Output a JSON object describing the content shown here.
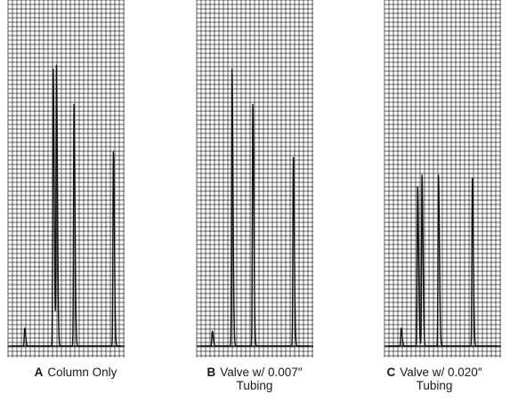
{
  "colors": {
    "grid": "#2b2b2b",
    "trace": "#111111",
    "background": "#ffffff"
  },
  "panels": [
    {
      "letter": "A",
      "caption": "Column Only",
      "caption2": ""
    },
    {
      "letter": "B",
      "caption": "Valve w/ 0.007″",
      "caption2": "Tubing"
    },
    {
      "letter": "C",
      "caption": "Valve w/ 0.020″",
      "caption2": "Tubing"
    }
  ],
  "chart_data": [
    {
      "type": "line",
      "title": "",
      "caption": "A Column Only",
      "xlabel": "",
      "ylabel": "",
      "grid": true,
      "xlim": [
        0,
        1
      ],
      "ylim": [
        0,
        1
      ],
      "peaks": [
        {
          "t": 0.12,
          "h": 0.06
        },
        {
          "t": 0.38,
          "h": 0.94
        },
        {
          "t": 0.41,
          "h": 0.95
        },
        {
          "t": 0.57,
          "h": 0.82
        },
        {
          "t": 0.93,
          "h": 0.66
        }
      ]
    },
    {
      "type": "line",
      "title": "",
      "caption": "B Valve w/ 0.007″ Tubing",
      "xlabel": "",
      "ylabel": "",
      "grid": true,
      "xlim": [
        0,
        1
      ],
      "ylim": [
        0,
        1
      ],
      "peaks": [
        {
          "t": 0.11,
          "h": 0.05
        },
        {
          "t": 0.29,
          "h": 0.94
        },
        {
          "t": 0.48,
          "h": 0.82
        },
        {
          "t": 0.85,
          "h": 0.64
        }
      ]
    },
    {
      "type": "line",
      "title": "",
      "caption": "C Valve w/ 0.020″ Tubing",
      "xlabel": "",
      "ylabel": "",
      "grid": true,
      "xlim": [
        0,
        1
      ],
      "ylim": [
        0,
        1
      ],
      "peaks": [
        {
          "t": 0.12,
          "h": 0.06
        },
        {
          "t": 0.27,
          "h": 0.54
        },
        {
          "t": 0.31,
          "h": 0.58
        },
        {
          "t": 0.46,
          "h": 0.58
        },
        {
          "t": 0.77,
          "h": 0.57
        }
      ]
    }
  ]
}
